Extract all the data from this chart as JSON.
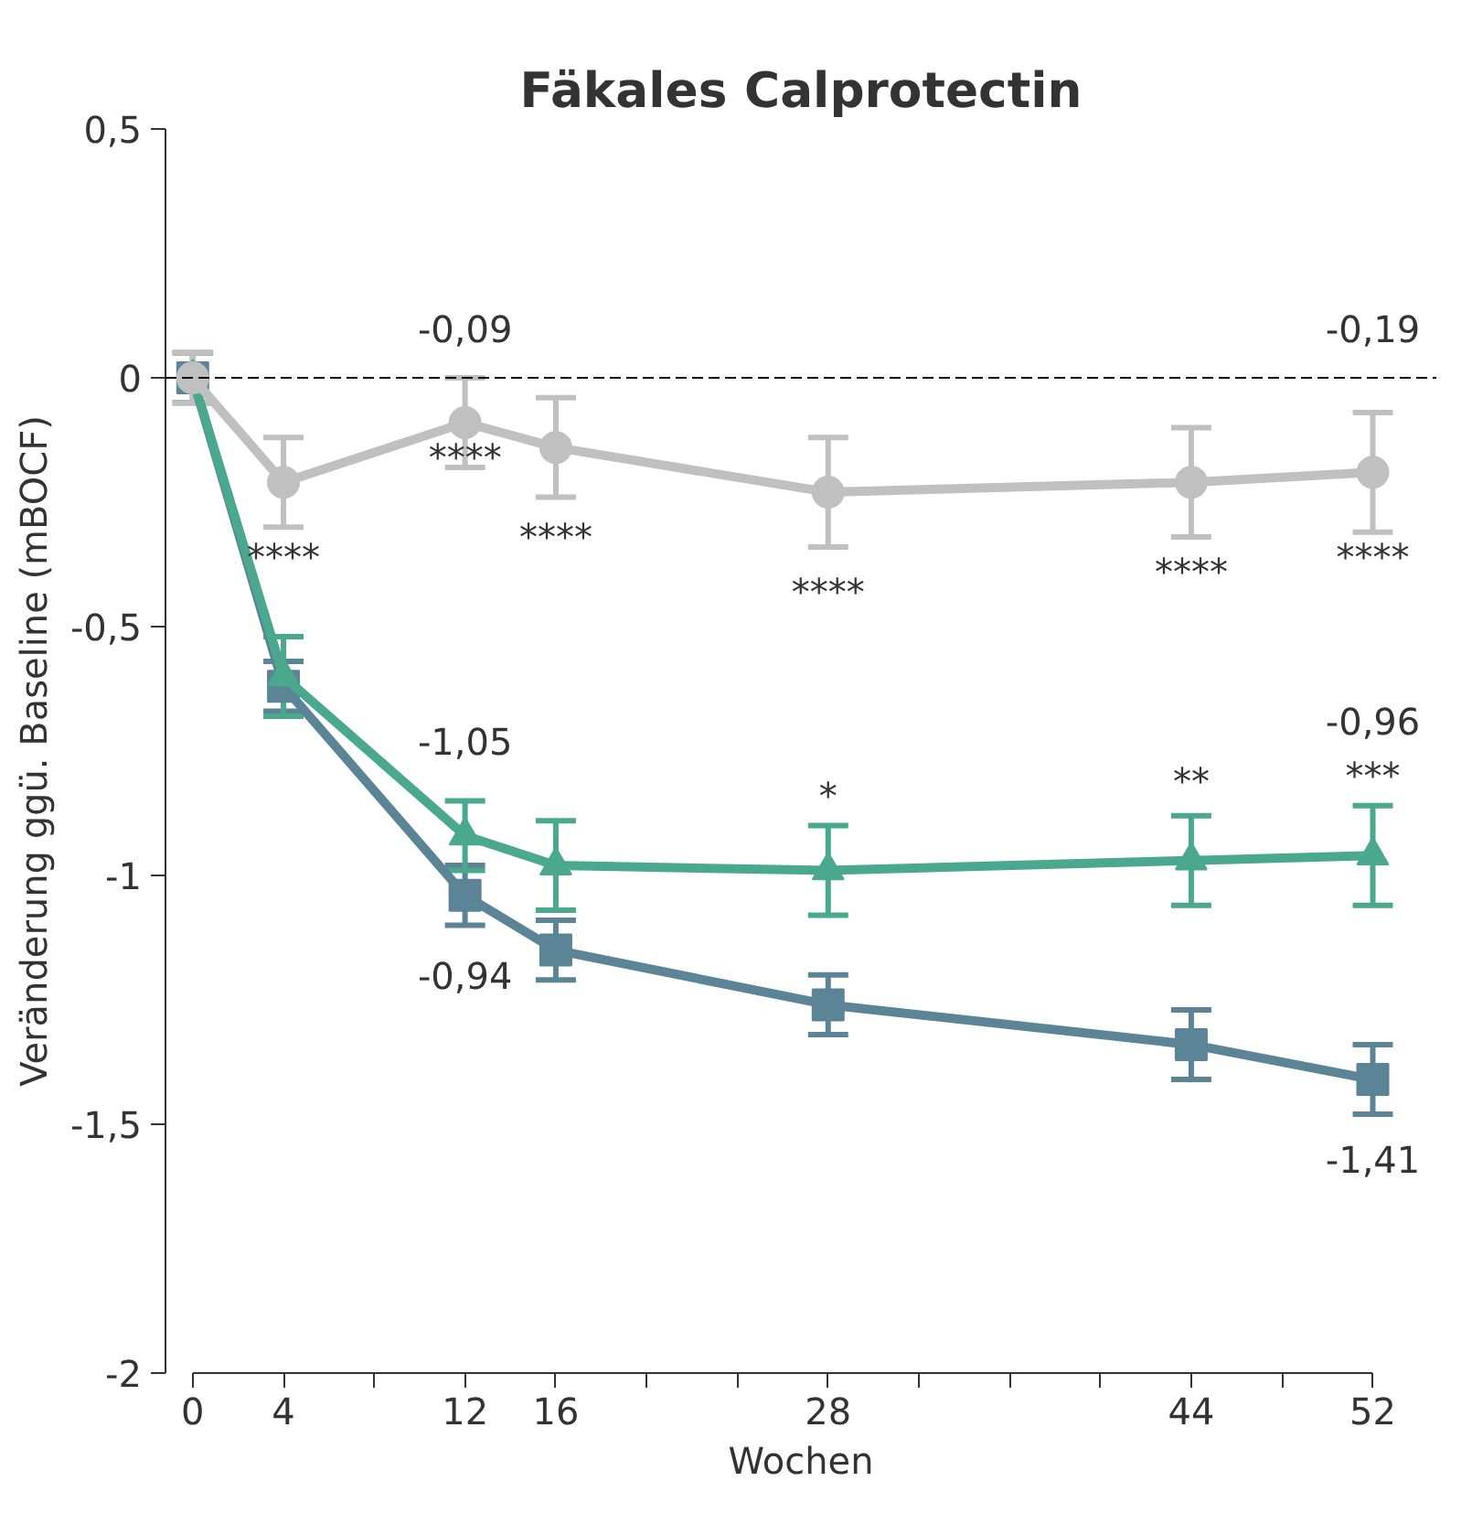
{
  "chart_data": {
    "type": "line",
    "title": "Fäkales Calprotectin",
    "xlabel": "Wochen",
    "ylabel": "Veränderung ggü. Baseline (mBOCF)",
    "x": [
      0,
      4,
      12,
      16,
      28,
      44,
      52
    ],
    "series": [
      {
        "color": "#c0c0c0",
        "marker": "circle",
        "values": [
          0,
          -0.21,
          -0.09,
          -0.14,
          -0.23,
          -0.21,
          -0.19
        ],
        "errors": [
          0.05,
          0.09,
          0.09,
          0.1,
          0.11,
          0.11,
          0.12
        ]
      },
      {
        "color": "#4aa88e",
        "marker": "triangle",
        "values": [
          0,
          -0.6,
          -0.92,
          -0.98,
          -0.99,
          -0.97,
          -0.96
        ],
        "errors": [
          0.05,
          0.08,
          0.07,
          0.09,
          0.09,
          0.09,
          0.1
        ]
      },
      {
        "color": "#5b8496",
        "marker": "square",
        "values": [
          0,
          -0.62,
          -1.04,
          -1.15,
          -1.26,
          -1.34,
          -1.41
        ],
        "errors": [
          0.05,
          0.05,
          0.06,
          0.06,
          0.06,
          0.07,
          0.07
        ]
      }
    ],
    "xlim": [
      0,
      52
    ],
    "ylim": [
      -2,
      0.5
    ],
    "xticks": [
      0,
      4,
      {
        "value": 8,
        "label": null
      },
      12,
      16,
      {
        "value": 20,
        "label": null
      },
      {
        "value": 24,
        "label": null
      },
      28,
      {
        "value": 32,
        "label": null
      },
      {
        "value": 36,
        "label": null
      },
      {
        "value": 40,
        "label": null
      },
      44,
      {
        "value": 48,
        "label": null
      },
      52
    ],
    "yticks": [
      {
        "value": 0.5,
        "label": "0,5"
      },
      0,
      {
        "value": -0.5,
        "label": "-0,5"
      },
      -1,
      {
        "value": -1.5,
        "label": "-1,5"
      },
      -2
    ],
    "ref_lines": [
      {
        "axis": "y",
        "value": 0,
        "color": "#000000",
        "line_style": "dashed"
      }
    ],
    "grid": false,
    "line_style": "solid",
    "annotations": [
      "-0,09",
      "-0,19",
      "****",
      "****",
      "****",
      "****",
      "****",
      "****",
      "-1,05",
      "-0,94",
      "*",
      "**",
      "***",
      "-0,96",
      "-1,41"
    ]
  }
}
